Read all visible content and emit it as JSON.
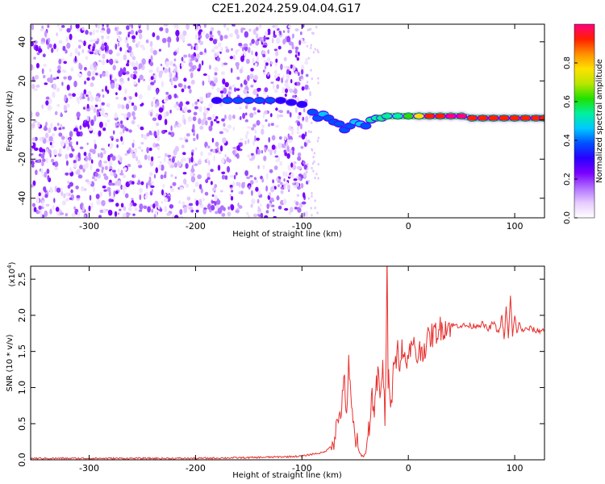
{
  "title": "C2E1.2024.259.04.04.G17",
  "chart_data": [
    {
      "type": "heatmap",
      "xlabel": "Height of straight line (km)",
      "ylabel": "Frequency (Hz)",
      "xlim": [
        -355,
        128
      ],
      "ylim": [
        -50,
        49
      ],
      "xticks": [
        -300,
        -200,
        -100,
        0,
        100
      ],
      "xtick_labels": [
        "-300",
        "-200",
        "-100",
        "0",
        "100"
      ],
      "yticks": [
        -40,
        -20,
        0,
        20,
        40
      ],
      "ytick_labels": [
        "-40",
        "-20",
        "0",
        "20",
        "40"
      ],
      "colorbar": {
        "label": "Normalized spectral amplitude",
        "range": [
          0.0,
          1.0
        ],
        "ticks": [
          0.0,
          0.2,
          0.4,
          0.6,
          0.8
        ],
        "tick_labels": [
          "0.0",
          "0.2",
          "0.4",
          "0.6",
          "0.8"
        ],
        "colormap": [
          "#ffffff",
          "#e6ccff",
          "#b070ff",
          "#7a00ff",
          "#2a00ff",
          "#0050ff",
          "#00c8ff",
          "#00f0a0",
          "#20e000",
          "#b8e600",
          "#ffe000",
          "#ff9000",
          "#ff2000",
          "#ff0080"
        ]
      },
      "noise_region": {
        "x_start": -355,
        "x_end": -95
      },
      "ridge": [
        {
          "x": -180,
          "y": 10,
          "amp": 0.3
        },
        {
          "x": -170,
          "y": 10,
          "amp": 0.35
        },
        {
          "x": -160,
          "y": 10,
          "amp": 0.35
        },
        {
          "x": -150,
          "y": 10,
          "amp": 0.35
        },
        {
          "x": -140,
          "y": 10,
          "amp": 0.35
        },
        {
          "x": -130,
          "y": 10,
          "amp": 0.35
        },
        {
          "x": -120,
          "y": 10,
          "amp": 0.3
        },
        {
          "x": -110,
          "y": 9,
          "amp": 0.3
        },
        {
          "x": -100,
          "y": 8,
          "amp": 0.3
        },
        {
          "x": -90,
          "y": 4,
          "amp": 0.35
        },
        {
          "x": -85,
          "y": 1,
          "amp": 0.4
        },
        {
          "x": -80,
          "y": 3,
          "amp": 0.45
        },
        {
          "x": -75,
          "y": 1,
          "amp": 0.4
        },
        {
          "x": -70,
          "y": -1,
          "amp": 0.4
        },
        {
          "x": -65,
          "y": -2,
          "amp": 0.4
        },
        {
          "x": -60,
          "y": -5,
          "amp": 0.35
        },
        {
          "x": -55,
          "y": -3,
          "amp": 0.4
        },
        {
          "x": -50,
          "y": -1,
          "amp": 0.45
        },
        {
          "x": -45,
          "y": -2,
          "amp": 0.45
        },
        {
          "x": -40,
          "y": -3,
          "amp": 0.4
        },
        {
          "x": -35,
          "y": 0,
          "amp": 0.5
        },
        {
          "x": -30,
          "y": 1,
          "amp": 0.55
        },
        {
          "x": -25,
          "y": 1,
          "amp": 0.55
        },
        {
          "x": -20,
          "y": 2,
          "amp": 0.5
        },
        {
          "x": -10,
          "y": 2,
          "amp": 0.55
        },
        {
          "x": 0,
          "y": 2,
          "amp": 0.65
        },
        {
          "x": 10,
          "y": 2,
          "amp": 0.8
        },
        {
          "x": 20,
          "y": 2,
          "amp": 0.9
        },
        {
          "x": 30,
          "y": 2,
          "amp": 0.95
        },
        {
          "x": 40,
          "y": 2,
          "amp": 1.0
        },
        {
          "x": 50,
          "y": 2,
          "amp": 1.0
        },
        {
          "x": 60,
          "y": 1,
          "amp": 0.95
        },
        {
          "x": 70,
          "y": 1,
          "amp": 0.9
        },
        {
          "x": 80,
          "y": 1,
          "amp": 0.9
        },
        {
          "x": 90,
          "y": 1,
          "amp": 0.9
        },
        {
          "x": 100,
          "y": 1,
          "amp": 0.9
        },
        {
          "x": 110,
          "y": 1,
          "amp": 0.9
        },
        {
          "x": 120,
          "y": 1,
          "amp": 0.9
        },
        {
          "x": 128,
          "y": 1,
          "amp": 0.9
        }
      ]
    },
    {
      "type": "line",
      "xlabel": "Height of straight line (km)",
      "ylabel": "SNR (10 * v/v)",
      "y_multiplier_label": "(x10",
      "y_multiplier_exp": "4",
      "y_multiplier_close": ")",
      "xlim": [
        -355,
        128
      ],
      "ylim": [
        0,
        2.68
      ],
      "xticks": [
        -300,
        -200,
        -100,
        0,
        100
      ],
      "xtick_labels": [
        "-300",
        "-200",
        "-100",
        "0",
        "100"
      ],
      "yticks": [
        0.0,
        0.5,
        1.0,
        1.5,
        2.0,
        2.5
      ],
      "ytick_labels": [
        "0.0",
        "0.5",
        "1.0",
        "1.5",
        "2.0",
        "2.5"
      ],
      "series": [
        {
          "color": "#e8302e",
          "x": [
            -355,
            -300,
            -250,
            -200,
            -150,
            -120,
            -100,
            -90,
            -80,
            -75,
            -70,
            -65,
            -62,
            -60,
            -58,
            -56,
            -54,
            -52,
            -50,
            -48,
            -46,
            -44,
            -42,
            -40,
            -38,
            -36,
            -34,
            -32,
            -30,
            -28,
            -26,
            -24,
            -22,
            -21,
            -20,
            -19,
            -18,
            -16,
            -14,
            -12,
            -10,
            -8,
            -6,
            -4,
            -2,
            0,
            2,
            4,
            6,
            8,
            10,
            15,
            20,
            25,
            30,
            35,
            40,
            50,
            60,
            70,
            75,
            80,
            85,
            88,
            90,
            92,
            94,
            96,
            98,
            100,
            102,
            104,
            106,
            110,
            115,
            120,
            128
          ],
          "y": [
            0.02,
            0.02,
            0.02,
            0.02,
            0.03,
            0.04,
            0.05,
            0.08,
            0.1,
            0.15,
            0.3,
            0.6,
            0.8,
            1.1,
            0.65,
            1.3,
            0.8,
            0.5,
            0.35,
            0.2,
            0.1,
            0.06,
            0.05,
            0.1,
            0.3,
            0.6,
            0.9,
            0.7,
            1.0,
            1.2,
            0.8,
            1.3,
            0.6,
            1.4,
            2.68,
            1.1,
            1.2,
            0.7,
            1.5,
            1.3,
            1.7,
            1.1,
            1.6,
            1.4,
            1.5,
            1.3,
            1.6,
            1.5,
            1.6,
            1.4,
            1.5,
            1.55,
            1.7,
            1.75,
            1.82,
            1.85,
            1.86,
            1.86,
            1.85,
            1.88,
            1.8,
            1.9,
            1.75,
            2.0,
            1.65,
            2.1,
            1.7,
            2.25,
            1.7,
            2.0,
            1.75,
            1.9,
            1.8,
            1.8,
            1.82,
            1.78,
            1.8
          ]
        }
      ]
    }
  ]
}
